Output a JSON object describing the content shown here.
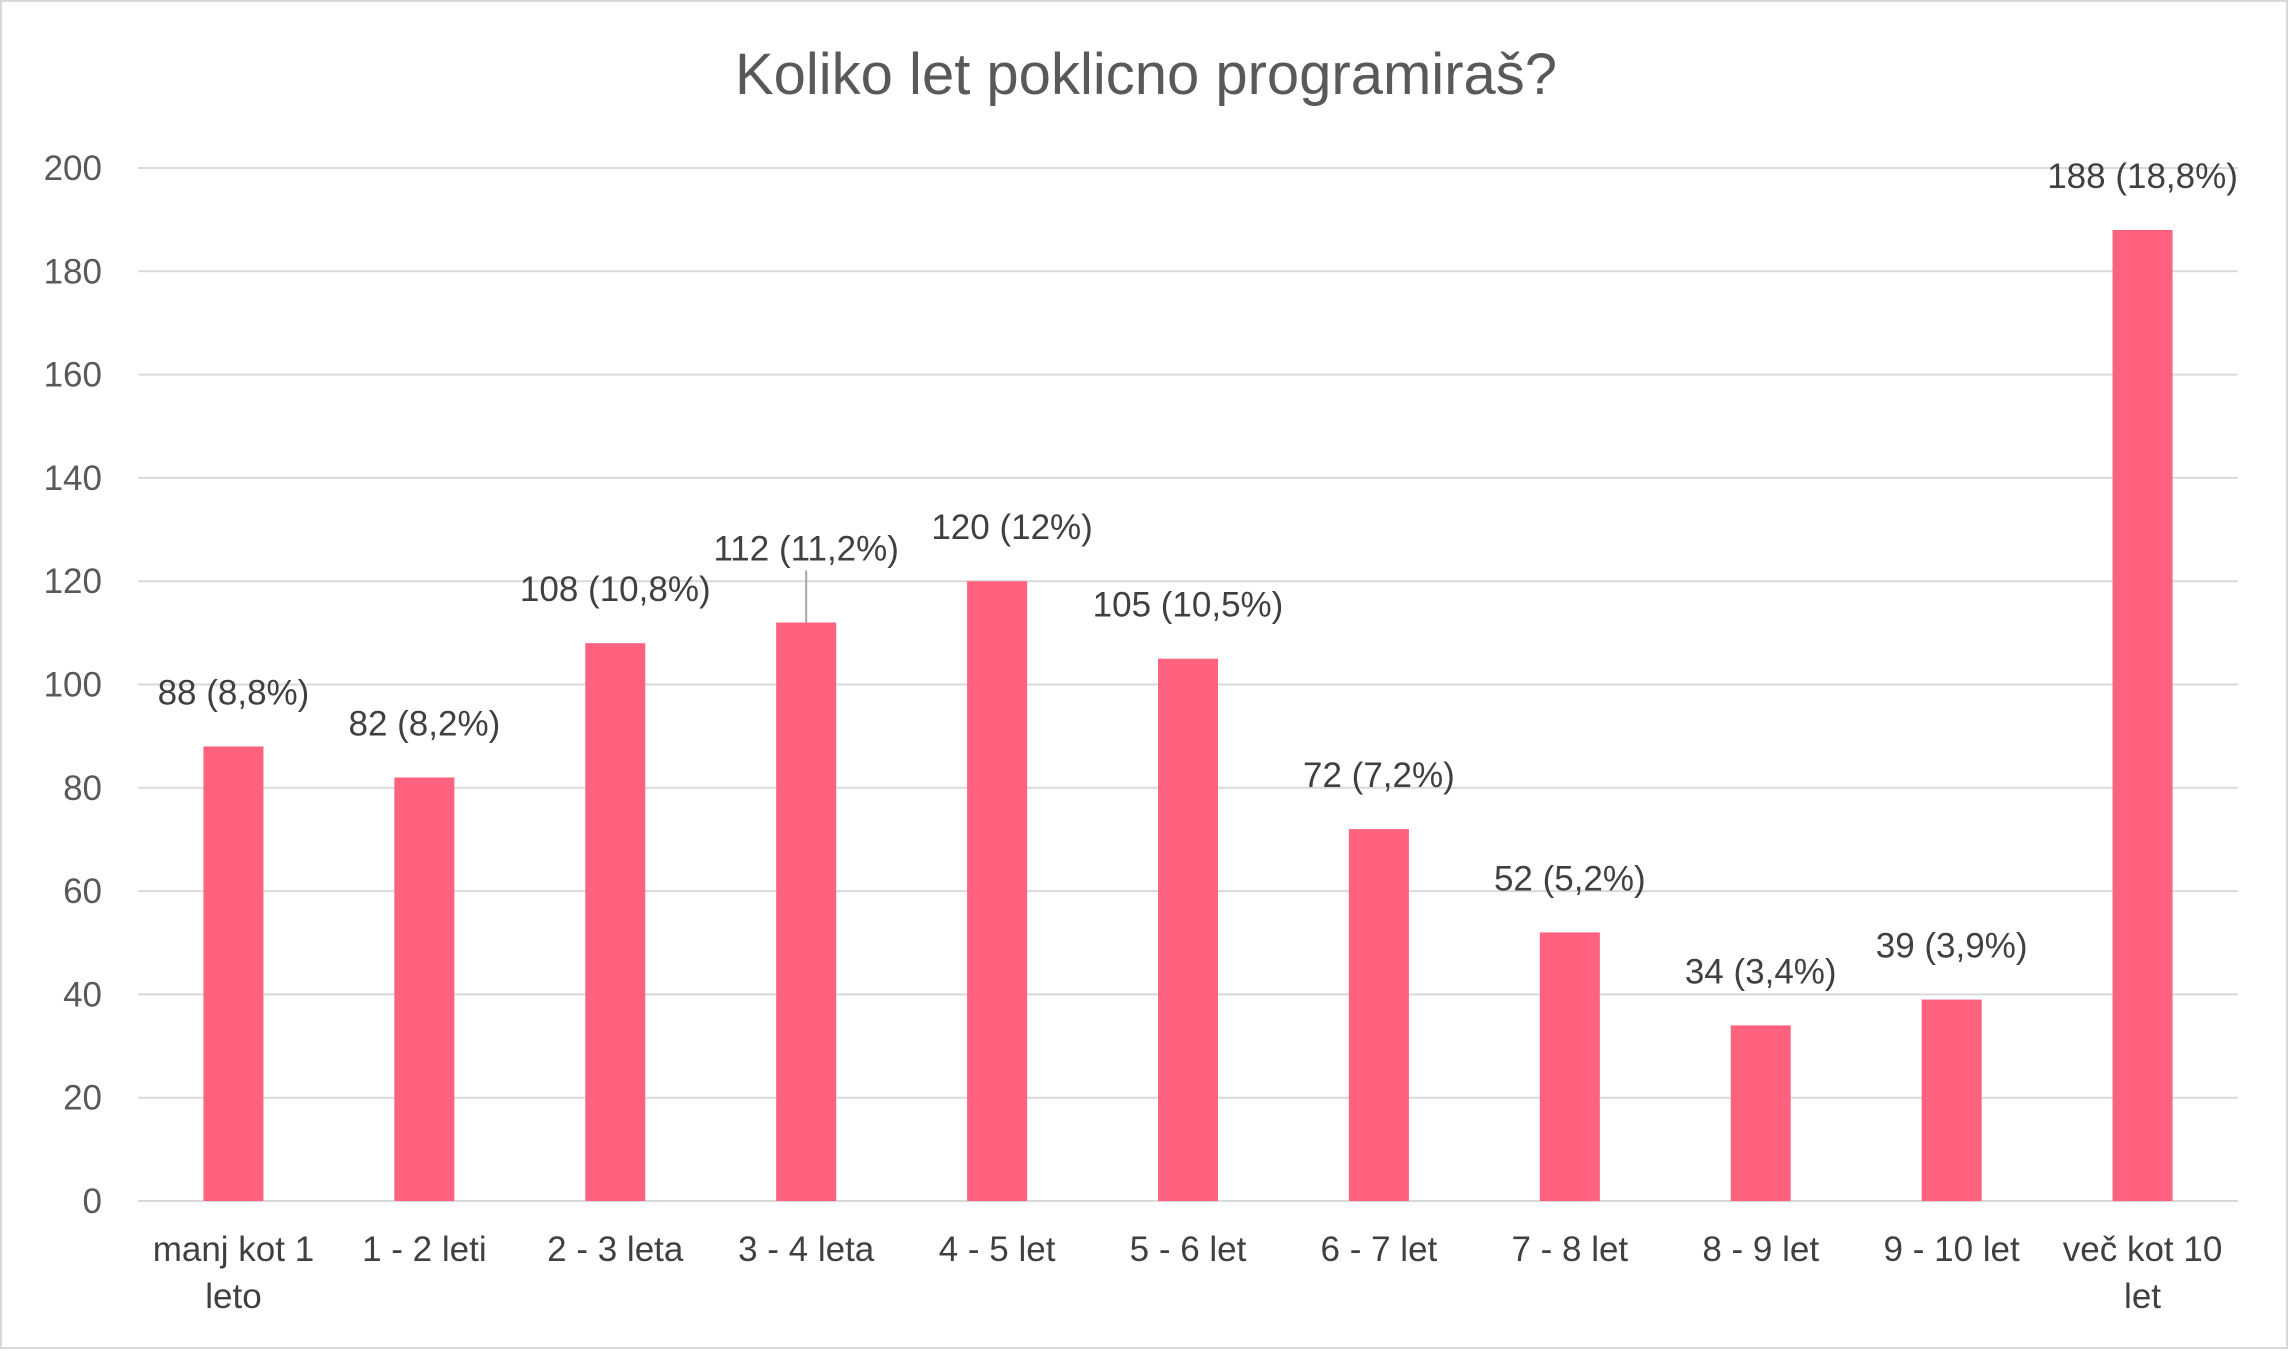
{
  "chart_data": {
    "type": "bar",
    "title": "Koliko let poklicno programiraš?",
    "xlabel": "",
    "ylabel": "",
    "categories": [
      [
        "manj kot 1",
        "leto"
      ],
      [
        "1 - 2 leti"
      ],
      [
        "2 - 3 leta"
      ],
      [
        "3 - 4 leta"
      ],
      [
        "4 - 5 let"
      ],
      [
        "5 - 6 let"
      ],
      [
        "6 - 7 let"
      ],
      [
        "7 - 8 let"
      ],
      [
        "8 - 9 let"
      ],
      [
        "9 - 10 let"
      ],
      [
        "več kot 10",
        "let"
      ]
    ],
    "values": [
      88,
      82,
      108,
      112,
      120,
      105,
      72,
      52,
      34,
      39,
      188
    ],
    "data_labels": [
      "88 (8,8%)",
      "82 (8,2%)",
      "108 (10,8%)",
      "112 (11,2%)",
      "120 (12%)",
      "105 (10,5%)",
      "72 (7,2%)",
      "52 (5,2%)",
      "34 (3,4%)",
      "39 (3,9%)",
      "188 (18,8%)"
    ],
    "ylim": [
      0,
      200
    ],
    "yticks": [
      0,
      20,
      40,
      60,
      80,
      100,
      120,
      140,
      160,
      180,
      200
    ],
    "grid": true,
    "legend": "none",
    "colors": {
      "bar": "#ff627e",
      "grid": "#d9d9d9",
      "axis_text": "#595959",
      "label_text": "#404040"
    }
  }
}
